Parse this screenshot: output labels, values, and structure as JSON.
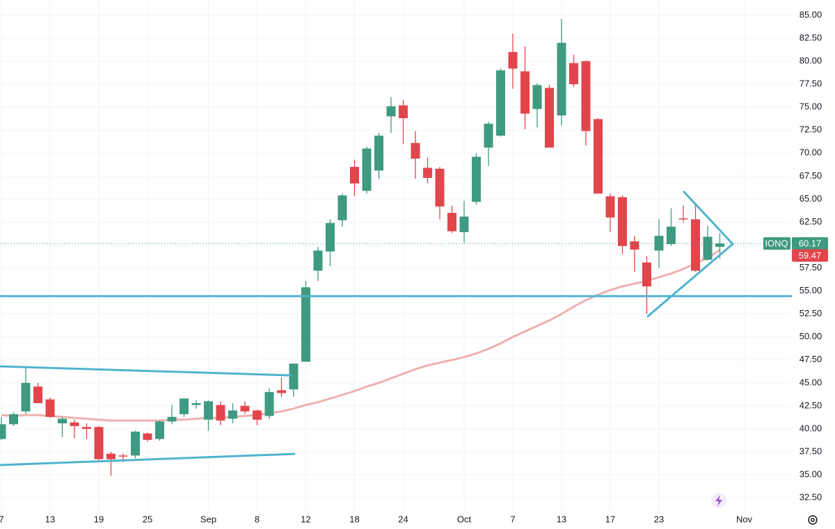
{
  "chart_data": {
    "type": "candlestick",
    "symbol": "IONQ",
    "up_color": "#3e9a80",
    "down_color": "#e2454b",
    "categories": [
      "7",
      null,
      null,
      null,
      "13",
      null,
      null,
      null,
      "19",
      null,
      null,
      null,
      "25",
      null,
      null,
      null,
      null,
      "Sep",
      null,
      null,
      null,
      "8",
      null,
      null,
      null,
      "12",
      null,
      null,
      null,
      "18",
      null,
      null,
      null,
      "24",
      null,
      null,
      null,
      null,
      "Oct",
      null,
      null,
      null,
      "7",
      null,
      null,
      null,
      "13",
      null,
      null,
      null,
      "17",
      null,
      null,
      null,
      "23",
      null,
      null,
      null,
      null,
      null,
      null,
      "Nov",
      null,
      null,
      null
    ],
    "open": [
      38.9,
      40.5,
      41.9,
      44.6,
      43.2,
      40.6,
      40.7,
      40.2,
      40.2,
      37.3,
      37.1,
      37.1,
      39.5,
      38.9,
      40.8,
      41.6,
      42.6,
      41.0,
      42.6,
      41.1,
      42.5,
      42.0,
      41.4,
      44.2,
      44.3,
      47.3,
      57.2,
      59.3,
      62.7,
      68.5,
      65.9,
      68.1,
      74.0,
      75.2,
      71.1,
      68.4,
      68.3,
      63.5,
      61.4,
      64.7,
      70.6,
      71.9,
      81.0,
      78.9,
      74.8,
      77.1,
      74.1,
      79.8,
      80.0,
      73.7,
      65.3,
      65.2,
      60.4,
      58.1,
      59.4,
      60.1,
      62.9,
      62.8,
      58.4,
      59.8,
      null,
      null,
      null,
      null,
      null
    ],
    "high": [
      41.3,
      41.8,
      46.8,
      45.0,
      43.4,
      41.3,
      41.0,
      40.6,
      40.3,
      37.5,
      37.3,
      39.8,
      39.6,
      40.9,
      42.6,
      43.3,
      43.1,
      43.1,
      43.0,
      42.8,
      43.0,
      42.1,
      44.4,
      45.6,
      47.1,
      56.1,
      59.8,
      62.8,
      65.6,
      69.3,
      70.7,
      72.2,
      76.1,
      75.8,
      72.4,
      69.5,
      68.5,
      64.3,
      64.8,
      70.0,
      73.4,
      79.2,
      83.0,
      81.6,
      77.6,
      77.4,
      84.6,
      80.7,
      80.1,
      73.8,
      65.6,
      65.4,
      61.0,
      58.8,
      62.8,
      64.0,
      64.3,
      64.6,
      62.1,
      61.3,
      null,
      null,
      null,
      null,
      null
    ],
    "low": [
      38.8,
      40.3,
      41.6,
      42.8,
      41.2,
      39.1,
      39.0,
      38.9,
      36.6,
      34.9,
      36.4,
      36.8,
      38.6,
      38.7,
      40.5,
      41.3,
      42.2,
      39.8,
      40.4,
      40.6,
      41.6,
      40.4,
      41.1,
      43.5,
      43.5,
      47.3,
      56.1,
      57.7,
      62.0,
      65.3,
      65.6,
      67.2,
      72.2,
      71.0,
      67.2,
      66.7,
      62.8,
      61.3,
      60.2,
      64.4,
      68.6,
      71.8,
      77.0,
      72.6,
      72.8,
      70.6,
      73.0,
      77.2,
      70.8,
      65.6,
      61.4,
      59.0,
      57.1,
      52.5,
      57.5,
      59.9,
      62.5,
      57.1,
      58.3,
      58.5,
      null,
      null,
      null,
      null,
      null
    ],
    "close": [
      40.5,
      41.6,
      45.0,
      42.8,
      41.3,
      41.1,
      40.3,
      40.0,
      36.7,
      36.7,
      37.0,
      39.7,
      38.8,
      40.8,
      41.3,
      43.3,
      42.8,
      43.0,
      40.9,
      42.0,
      41.9,
      41.0,
      44.0,
      43.9,
      47.1,
      55.4,
      59.4,
      62.4,
      65.4,
      66.7,
      70.5,
      71.9,
      75.1,
      73.8,
      69.4,
      67.3,
      64.2,
      61.5,
      63.1,
      69.6,
      73.2,
      79.0,
      79.2,
      74.3,
      77.4,
      70.6,
      82.0,
      77.5,
      72.4,
      65.6,
      63.0,
      59.9,
      59.5,
      55.5,
      61.0,
      62.0,
      62.8,
      57.2,
      60.9,
      60.17,
      null,
      null,
      null,
      null,
      null
    ],
    "ma": {
      "color": "#eeb0b0",
      "values": [
        41.5,
        41.4,
        41.5,
        41.5,
        41.4,
        41.3,
        41.2,
        41.1,
        41.0,
        40.9,
        40.9,
        40.9,
        40.9,
        40.9,
        41.0,
        41.0,
        41.1,
        41.2,
        41.2,
        41.3,
        41.4,
        41.5,
        41.7,
        41.9,
        42.2,
        42.6,
        42.9,
        43.3,
        43.7,
        44.1,
        44.6,
        45.0,
        45.5,
        46.0,
        46.5,
        46.9,
        47.2,
        47.5,
        47.8,
        48.2,
        48.7,
        49.3,
        50.0,
        50.6,
        51.2,
        51.8,
        52.5,
        53.3,
        54.0,
        54.6,
        55.1,
        55.5,
        55.8,
        56.1,
        56.5,
        56.9,
        57.4,
        58.0,
        58.6,
        59.47,
        null,
        null,
        null,
        null,
        null
      ]
    },
    "ylim": [
      31.07,
      86.66
    ],
    "yticks": [
      {
        "value": 32.5,
        "label": "32.50"
      },
      {
        "value": 35,
        "label": "35.00"
      },
      {
        "value": 37.5,
        "label": "37.50"
      },
      {
        "value": 40,
        "label": "40.00"
      },
      {
        "value": 42.5,
        "label": "42.50"
      },
      {
        "value": 45,
        "label": "45.00"
      },
      {
        "value": 47.5,
        "label": "47.50"
      },
      {
        "value": 50,
        "label": "50.00"
      },
      {
        "value": 52.5,
        "label": "52.50"
      },
      {
        "value": 55,
        "label": "55.00"
      },
      {
        "value": 57.5,
        "label": "57.50"
      },
      {
        "value": 60,
        "label": "60.00"
      },
      {
        "value": 62.5,
        "label": "62.50"
      },
      {
        "value": 65,
        "label": "65.00"
      },
      {
        "value": 67.5,
        "label": "67.50"
      },
      {
        "value": 70,
        "label": "70.00"
      },
      {
        "value": 72.5,
        "label": "72.50"
      },
      {
        "value": 75,
        "label": "75.00"
      },
      {
        "value": 77.5,
        "label": "77.50"
      },
      {
        "value": 80,
        "label": "80.00"
      },
      {
        "value": 82.5,
        "label": "82.50"
      },
      {
        "value": 85,
        "label": "85.00"
      }
    ],
    "grid": true
  }
}
